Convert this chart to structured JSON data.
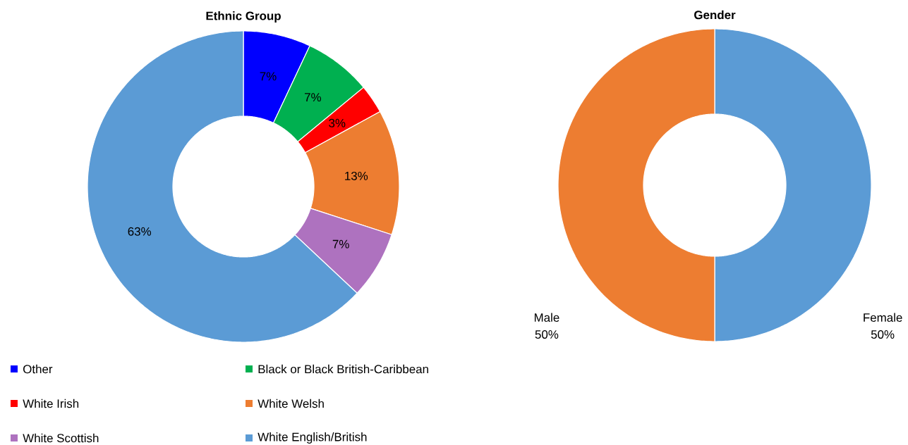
{
  "chart_data": [
    {
      "type": "donut",
      "title": "Ethnic Group",
      "categories": [
        "Other",
        "Black or Black British-Caribbean",
        "White Irish",
        "White Welsh",
        "White Scottish",
        "White English/British"
      ],
      "values": [
        7,
        7,
        3,
        13,
        7,
        63
      ],
      "colors": [
        "#0000ff",
        "#00b050",
        "#ff0000",
        "#ed7d31",
        "#ae72bf",
        "#5b9bd5"
      ],
      "value_labels": [
        "7%",
        "7%",
        "3%",
        "13%",
        "7%",
        "63%"
      ],
      "legend": "bottom"
    },
    {
      "type": "donut",
      "title": "Gender",
      "categories": [
        "Female",
        "Male"
      ],
      "values": [
        50,
        50
      ],
      "colors": [
        "#5b9bd5",
        "#ed7d31"
      ],
      "value_labels": [
        "50%",
        "50%"
      ],
      "legend": false
    }
  ]
}
